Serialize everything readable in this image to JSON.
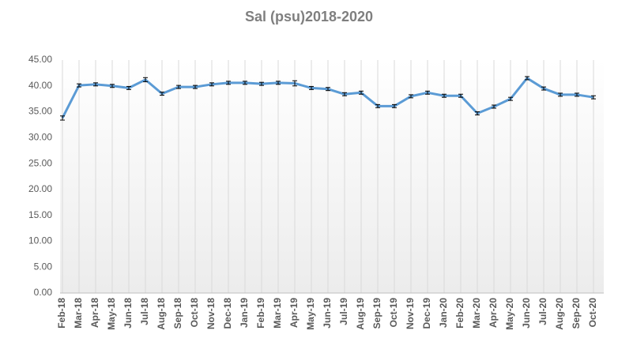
{
  "chart_data": {
    "type": "line",
    "title": "Sal (psu)2018-2020",
    "categories": [
      "Feb-18",
      "Mar-18",
      "Apr-18",
      "May-18",
      "Jun-18",
      "Jul-18",
      "Aug-18",
      "Sep-18",
      "Oct-18",
      "Nov-18",
      "Dec-18",
      "Jan-19",
      "Feb-19",
      "Mar-19",
      "Apr-19",
      "May-19",
      "Jun-19",
      "Jul-19",
      "Aug-19",
      "Sep-19",
      "Oct-19",
      "Nov-19",
      "Dec-19",
      "Jan-20",
      "Feb-20",
      "Mar-20",
      "Apr-20",
      "May-20",
      "Jun-20",
      "Jul-20",
      "Aug-20",
      "Sep-20",
      "Oct-20"
    ],
    "series": [
      {
        "name": "Sal (psu)",
        "color": "#5b9bd5",
        "values": [
          33.8,
          40.1,
          40.3,
          40.0,
          39.6,
          41.2,
          38.5,
          39.8,
          39.8,
          40.3,
          40.6,
          40.6,
          40.4,
          40.6,
          40.5,
          39.6,
          39.4,
          38.4,
          38.7,
          36.1,
          36.1,
          38.0,
          38.7,
          38.1,
          38.1,
          34.7,
          36.0,
          37.5,
          41.5,
          39.5,
          38.3,
          38.3,
          37.8
        ],
        "errors": [
          0.4,
          0.3,
          0.3,
          0.3,
          0.3,
          0.4,
          0.3,
          0.3,
          0.3,
          0.3,
          0.3,
          0.3,
          0.3,
          0.3,
          0.5,
          0.3,
          0.3,
          0.3,
          0.3,
          0.3,
          0.3,
          0.3,
          0.3,
          0.3,
          0.3,
          0.3,
          0.3,
          0.3,
          0.3,
          0.3,
          0.3,
          0.3,
          0.3
        ]
      }
    ],
    "ylim": [
      0,
      45
    ],
    "yticks": [
      {
        "value": 0,
        "label": "0.00"
      },
      {
        "value": 5,
        "label": "5.00"
      },
      {
        "value": 10,
        "label": "10.00"
      },
      {
        "value": 15,
        "label": "15.00"
      },
      {
        "value": 20,
        "label": "20.00"
      },
      {
        "value": 25,
        "label": "25.00"
      },
      {
        "value": 30,
        "label": "30.00"
      },
      {
        "value": 35,
        "label": "35.00"
      },
      {
        "value": 40,
        "label": "40.00"
      },
      {
        "value": 45,
        "label": "45.00"
      }
    ],
    "grid": true
  }
}
